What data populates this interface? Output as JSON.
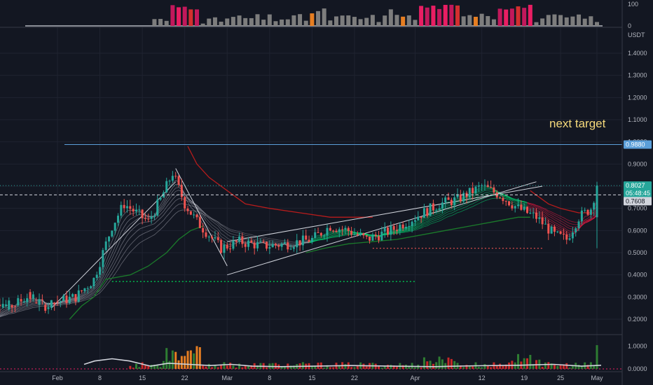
{
  "chart_data": {
    "type": "candlestick",
    "quote_unit": "USDT",
    "annotation": "next target",
    "y_axis": {
      "ticks": [
        "1.4000",
        "1.3000",
        "1.2000",
        "1.1000",
        "1.0000",
        "0.9000",
        "0.8000",
        "0.7000",
        "0.6000",
        "0.5000",
        "0.4000",
        "0.3000",
        "0.2000"
      ],
      "range": [
        0.15,
        1.45
      ]
    },
    "x_axis": {
      "ticks": [
        "Feb",
        "8",
        "15",
        "22",
        "Mar",
        "8",
        "15",
        "22",
        "Apr",
        "12",
        "19",
        "25",
        "May"
      ]
    },
    "price_tags": [
      {
        "label": "0.9880",
        "color": "#5b9fd9"
      },
      {
        "label": "0.8027",
        "color": "#26a69a"
      },
      {
        "label": "05:48:45",
        "color": "#26a69a"
      },
      {
        "label": "0.7608",
        "color": "#d1d4dc"
      }
    ],
    "target_level": 0.988,
    "last_price": 0.8027,
    "reference_level": 0.7608,
    "top_panel": {
      "ticks": [
        "100",
        "0"
      ],
      "range": [
        0,
        100
      ]
    },
    "volume_panel": {
      "ticks": [
        "1.0000",
        "0.0000"
      ],
      "range": [
        0,
        1.3
      ]
    },
    "colors": {
      "up": "#26a69a",
      "down": "#ef5350",
      "target_line": "#5b9fd9",
      "supertrend_down": "#b71c1c",
      "supertrend_up": "#1b7a2b",
      "annotation": "#f5d97b",
      "ribbon_up": "#00e676",
      "ribbon_down": "#ff1744",
      "magenta": "#e91e63"
    }
  }
}
